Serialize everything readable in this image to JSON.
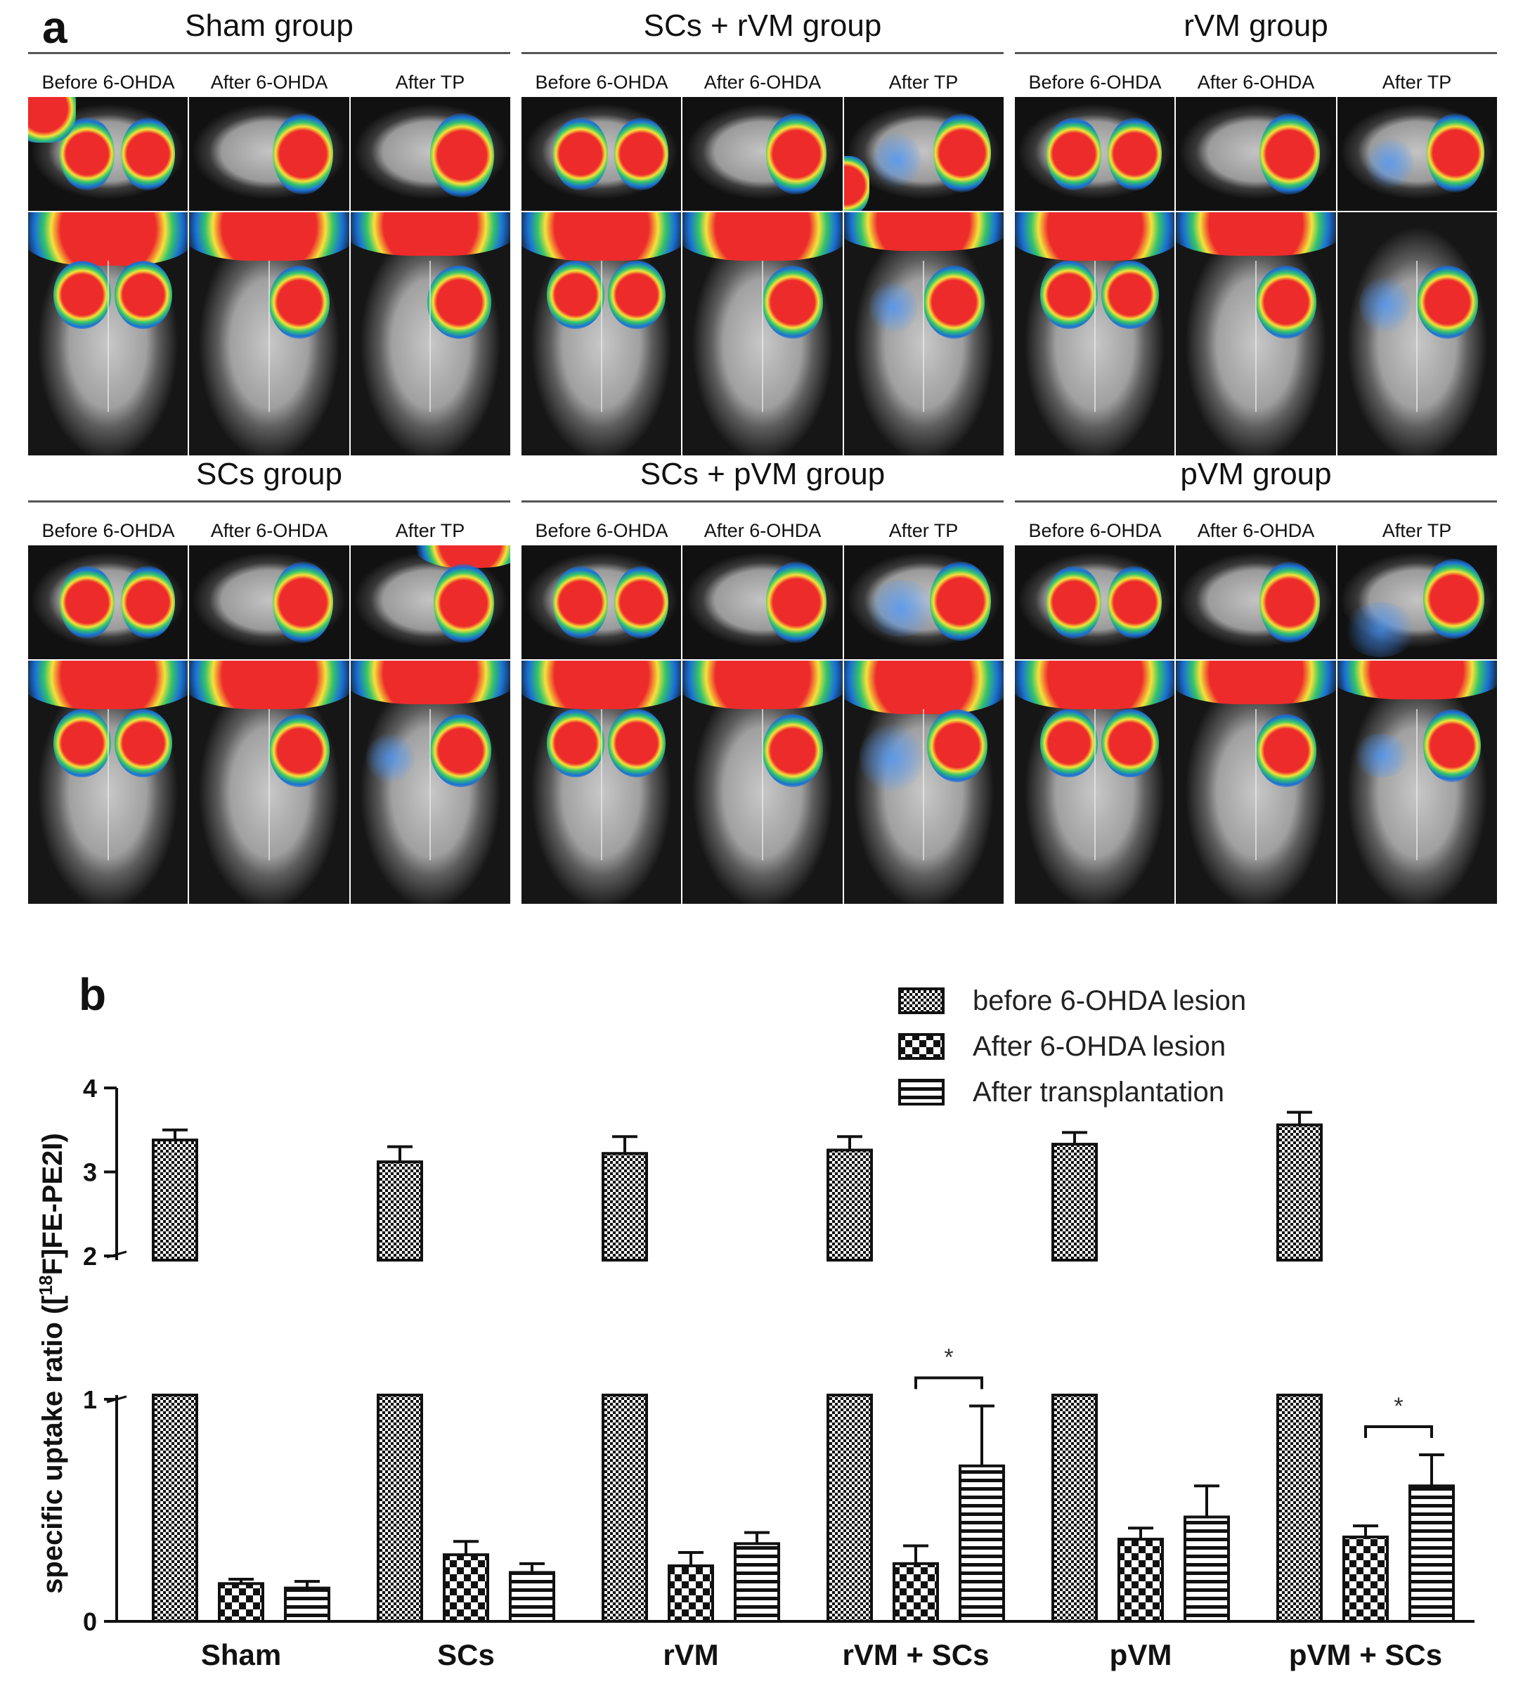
{
  "panel_a": {
    "letter": "a",
    "column_labels": [
      "Before 6-OHDA",
      "After 6-OHDA",
      "After TP"
    ],
    "groups": [
      {
        "title": "Sham group"
      },
      {
        "title": "SCs + rVM group"
      },
      {
        "title": "rVM group"
      },
      {
        "title": "SCs group"
      },
      {
        "title": "SCs + pVM group"
      },
      {
        "title": "pVM group"
      }
    ]
  },
  "panel_b": {
    "letter": "b",
    "legend": [
      {
        "label": "before 6-OHDA lesion",
        "pattern": "checker-fine"
      },
      {
        "label": "After 6-OHDA lesion",
        "pattern": "checker-coarse"
      },
      {
        "label": "After transplantation",
        "pattern": "stripes"
      }
    ]
  },
  "chart_data": {
    "type": "bar",
    "title": "",
    "xlabel": "",
    "ylabel": "specific uptake ratio ([18F]FE-PE2I)",
    "ylabel_parts": {
      "pre": "specific uptake ratio ([",
      "sup": "18",
      "post": "F]FE-PE2I)"
    },
    "categories": [
      "Sham",
      "SCs",
      "rVM",
      "rVM + SCs",
      "pVM",
      "pVM + SCs"
    ],
    "series": [
      {
        "name": "before 6-OHDA lesion",
        "values": [
          3.38,
          3.12,
          3.22,
          3.26,
          3.33,
          3.56
        ],
        "errors": [
          0.12,
          0.18,
          0.2,
          0.16,
          0.14,
          0.15
        ]
      },
      {
        "name": "After 6-OHDA lesion",
        "values": [
          0.17,
          0.3,
          0.25,
          0.26,
          0.37,
          0.38
        ],
        "errors": [
          0.02,
          0.06,
          0.06,
          0.08,
          0.05,
          0.05
        ]
      },
      {
        "name": "After transplantation",
        "values": [
          0.15,
          0.22,
          0.35,
          0.7,
          0.47,
          0.61
        ],
        "errors": [
          0.03,
          0.04,
          0.05,
          0.27,
          0.14,
          0.14
        ]
      }
    ],
    "y_axis": {
      "broken": true,
      "lower_range": [
        0,
        1
      ],
      "upper_range": [
        2,
        4
      ],
      "lower_ticks": [
        "0",
        "1"
      ],
      "upper_ticks": [
        "2",
        "3",
        "4"
      ]
    },
    "significance": [
      {
        "category": "rVM + SCs",
        "between": [
          "After 6-OHDA lesion",
          "After transplantation"
        ],
        "label": "*"
      },
      {
        "category": "pVM + SCs",
        "between": [
          "After 6-OHDA lesion",
          "After transplantation"
        ],
        "label": "*"
      }
    ],
    "grid": false,
    "legend_position": "top-right"
  }
}
